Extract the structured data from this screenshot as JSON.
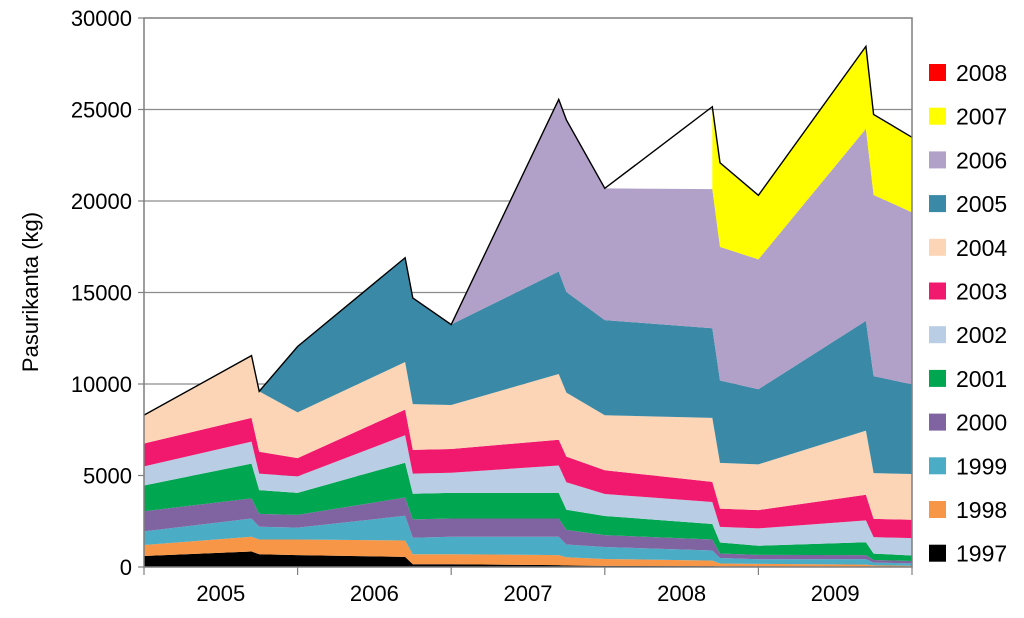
{
  "chart_data": {
    "type": "area",
    "stacked": true,
    "title": "",
    "ylabel": "Pasurikanta (kg)",
    "xlabel": "",
    "ylim": [
      0,
      30000
    ],
    "yticks": [
      0,
      5000,
      10000,
      15000,
      20000,
      25000,
      30000
    ],
    "ytick_labels": [
      "0",
      "5000",
      "10000",
      "15000",
      "20000",
      "25000",
      "30000"
    ],
    "grid": "horizontal",
    "legend_position": "right",
    "year_labels": [
      "2005",
      "2006",
      "2007",
      "2008",
      "2009"
    ],
    "x": [
      0,
      0.7,
      0.75,
      1,
      1.7,
      1.75,
      2,
      2.7,
      2.75,
      3,
      3.7,
      3.75,
      4,
      4.7,
      4.75,
      5
    ],
    "series": [
      {
        "name": "1997",
        "color": "#000000",
        "values": [
          600,
          850,
          700,
          650,
          550,
          150,
          150,
          100,
          80,
          60,
          50,
          40,
          40,
          30,
          30,
          30
        ]
      },
      {
        "name": "1998",
        "color": "#f79646",
        "values": [
          600,
          800,
          800,
          850,
          900,
          550,
          550,
          550,
          450,
          380,
          300,
          150,
          130,
          100,
          60,
          40
        ]
      },
      {
        "name": "1999",
        "color": "#4bacc6",
        "values": [
          750,
          1000,
          700,
          650,
          1350,
          900,
          950,
          1000,
          700,
          650,
          550,
          300,
          250,
          300,
          150,
          130
        ]
      },
      {
        "name": "2000",
        "color": "#8064a2",
        "values": [
          1100,
          1100,
          700,
          700,
          1000,
          1000,
          1000,
          1000,
          800,
          650,
          600,
          250,
          240,
          220,
          140,
          130
        ]
      },
      {
        "name": "2001",
        "color": "#00a650",
        "values": [
          1400,
          1900,
          1300,
          1200,
          1900,
          1400,
          1400,
          1400,
          1100,
          1050,
          850,
          600,
          500,
          700,
          350,
          300
        ]
      },
      {
        "name": "2002",
        "color": "#b9cde5",
        "values": [
          1050,
          1200,
          900,
          900,
          1500,
          1100,
          1100,
          1500,
          1500,
          1200,
          1200,
          850,
          950,
          1200,
          900,
          950
        ]
      },
      {
        "name": "2003",
        "color": "#f0196e",
        "values": [
          1250,
          1300,
          1200,
          1000,
          1400,
          1300,
          1300,
          1400,
          1400,
          1300,
          1100,
          1000,
          1000,
          1400,
          1000,
          1000
        ]
      },
      {
        "name": "2004",
        "color": "#fbd5b5",
        "values": [
          1550,
          3400,
          3300,
          2500,
          2600,
          2500,
          2400,
          3600,
          3500,
          3000,
          3500,
          2500,
          2500,
          3500,
          2500,
          2500
        ]
      },
      {
        "name": "2005",
        "color": "#3a89a6",
        "values": [
          0,
          0,
          0,
          3600,
          5700,
          5800,
          4400,
          5600,
          5500,
          5200,
          4900,
          4500,
          4100,
          6000,
          5300,
          4900
        ]
      },
      {
        "name": "2006",
        "color": "#b1a0c7",
        "values": [
          0,
          0,
          0,
          0,
          0,
          0,
          0,
          9400,
          9400,
          7200,
          7600,
          7300,
          7100,
          10500,
          9900,
          9400
        ]
      },
      {
        "name": "2007",
        "color": "#ffff00",
        "values": [
          null,
          null,
          null,
          null,
          null,
          null,
          null,
          null,
          null,
          null,
          4500,
          4600,
          3500,
          4500,
          4400,
          4100
        ]
      },
      {
        "name": "2008",
        "color": "#ff0000",
        "values": [
          null,
          null,
          null,
          null,
          null,
          null,
          null,
          null,
          null,
          null,
          null,
          null,
          null,
          null,
          null,
          null
        ]
      }
    ]
  }
}
